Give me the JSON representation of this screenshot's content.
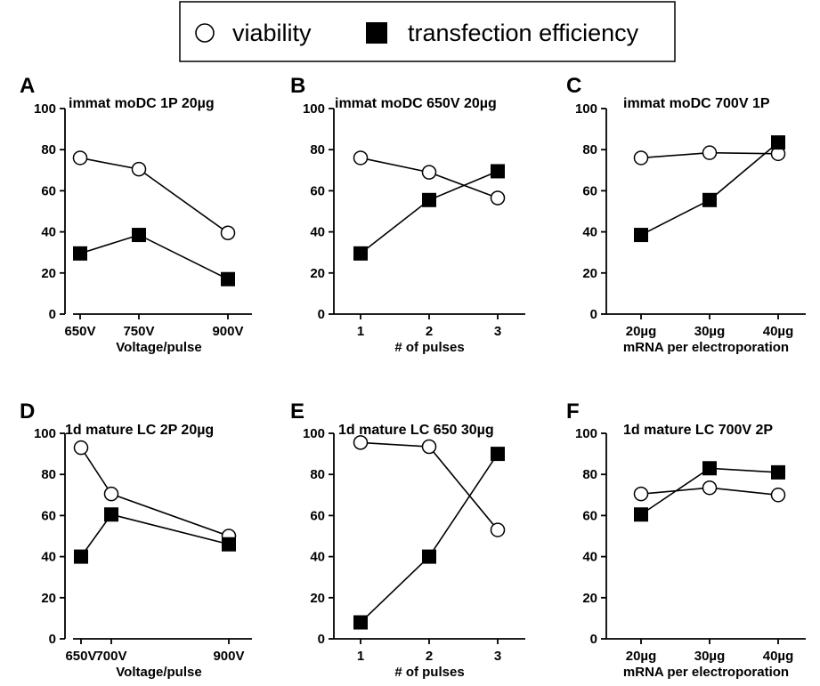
{
  "legend": {
    "viability_label": "viability",
    "transfection_label": "transfection efficiency"
  },
  "colors": {
    "ink": "#000000",
    "background": "#ffffff"
  },
  "markers": {
    "viability": "open-circle",
    "transfection": "filled-square"
  },
  "chart_data": [
    {
      "type": "line",
      "letter": "A",
      "title": "immat moDC 1P 20µg",
      "xlabel": "Voltage/pulse",
      "ylabel": "",
      "x_scale": "numeric",
      "x": [
        650,
        750,
        900
      ],
      "categories": [
        "650V",
        "750V",
        "900V"
      ],
      "ylim": [
        0,
        100
      ],
      "yticks": [
        "0",
        "20",
        "40",
        "60",
        "80",
        "100"
      ],
      "series": [
        {
          "name": "viability",
          "marker": "open-circle",
          "values": [
            76,
            70.5,
            39.5
          ]
        },
        {
          "name": "transfection efficiency",
          "marker": "filled-square",
          "values": [
            29.5,
            38.5,
            17
          ]
        }
      ]
    },
    {
      "type": "line",
      "letter": "B",
      "title": "immat moDC 650V 20µg",
      "xlabel": "# of pulses",
      "ylabel": "",
      "x_scale": "categorical",
      "categories": [
        "1",
        "2",
        "3"
      ],
      "ylim": [
        0,
        100
      ],
      "yticks": [
        "0",
        "20",
        "40",
        "60",
        "80",
        "100"
      ],
      "series": [
        {
          "name": "viability",
          "marker": "open-circle",
          "values": [
            76,
            69,
            56.5
          ]
        },
        {
          "name": "transfection efficiency",
          "marker": "filled-square",
          "values": [
            29.5,
            55.5,
            69.5
          ]
        }
      ]
    },
    {
      "type": "line",
      "letter": "C",
      "title": "immat moDC 700V 1P",
      "xlabel": "mRNA per electroporation",
      "ylabel": "",
      "x_scale": "categorical",
      "categories": [
        "20µg",
        "30µg",
        "40µg"
      ],
      "ylim": [
        0,
        100
      ],
      "yticks": [
        "0",
        "20",
        "40",
        "60",
        "80",
        "100"
      ],
      "series": [
        {
          "name": "viability",
          "marker": "open-circle",
          "values": [
            76,
            78.5,
            78
          ]
        },
        {
          "name": "transfection efficiency",
          "marker": "filled-square",
          "values": [
            38.5,
            55.5,
            83.5
          ]
        }
      ]
    },
    {
      "type": "line",
      "letter": "D",
      "title": "1d mature LC 2P 20µg",
      "xlabel": "Voltage/pulse",
      "ylabel": "",
      "x_scale": "numeric",
      "x": [
        650,
        700,
        900
      ],
      "categories": [
        "650V",
        "700V",
        "900V"
      ],
      "ylim": [
        0,
        100
      ],
      "yticks": [
        "0",
        "20",
        "40",
        "60",
        "80",
        "100"
      ],
      "series": [
        {
          "name": "viability",
          "marker": "open-circle",
          "values": [
            93,
            70.5,
            50
          ]
        },
        {
          "name": "transfection efficiency",
          "marker": "filled-square",
          "values": [
            40,
            60.5,
            46
          ]
        }
      ]
    },
    {
      "type": "line",
      "letter": "E",
      "title": "1d mature LC 650 30µg",
      "xlabel": "# of pulses",
      "ylabel": "",
      "x_scale": "categorical",
      "categories": [
        "1",
        "2",
        "3"
      ],
      "ylim": [
        0,
        100
      ],
      "yticks": [
        "0",
        "20",
        "40",
        "60",
        "80",
        "100"
      ],
      "series": [
        {
          "name": "viability",
          "marker": "open-circle",
          "values": [
            95.5,
            93.5,
            53
          ]
        },
        {
          "name": "transfection efficiency",
          "marker": "filled-square",
          "values": [
            8,
            40,
            90
          ]
        }
      ]
    },
    {
      "type": "line",
      "letter": "F",
      "title": "1d mature LC 700V 2P",
      "xlabel": "mRNA per electroporation",
      "ylabel": "",
      "x_scale": "categorical",
      "categories": [
        "20µg",
        "30µg",
        "40µg"
      ],
      "ylim": [
        0,
        100
      ],
      "yticks": [
        "0",
        "20",
        "40",
        "60",
        "80",
        "100"
      ],
      "series": [
        {
          "name": "viability",
          "marker": "open-circle",
          "values": [
            70.5,
            73.5,
            70
          ]
        },
        {
          "name": "transfection efficiency",
          "marker": "filled-square",
          "values": [
            60.5,
            83,
            81
          ]
        }
      ]
    }
  ]
}
